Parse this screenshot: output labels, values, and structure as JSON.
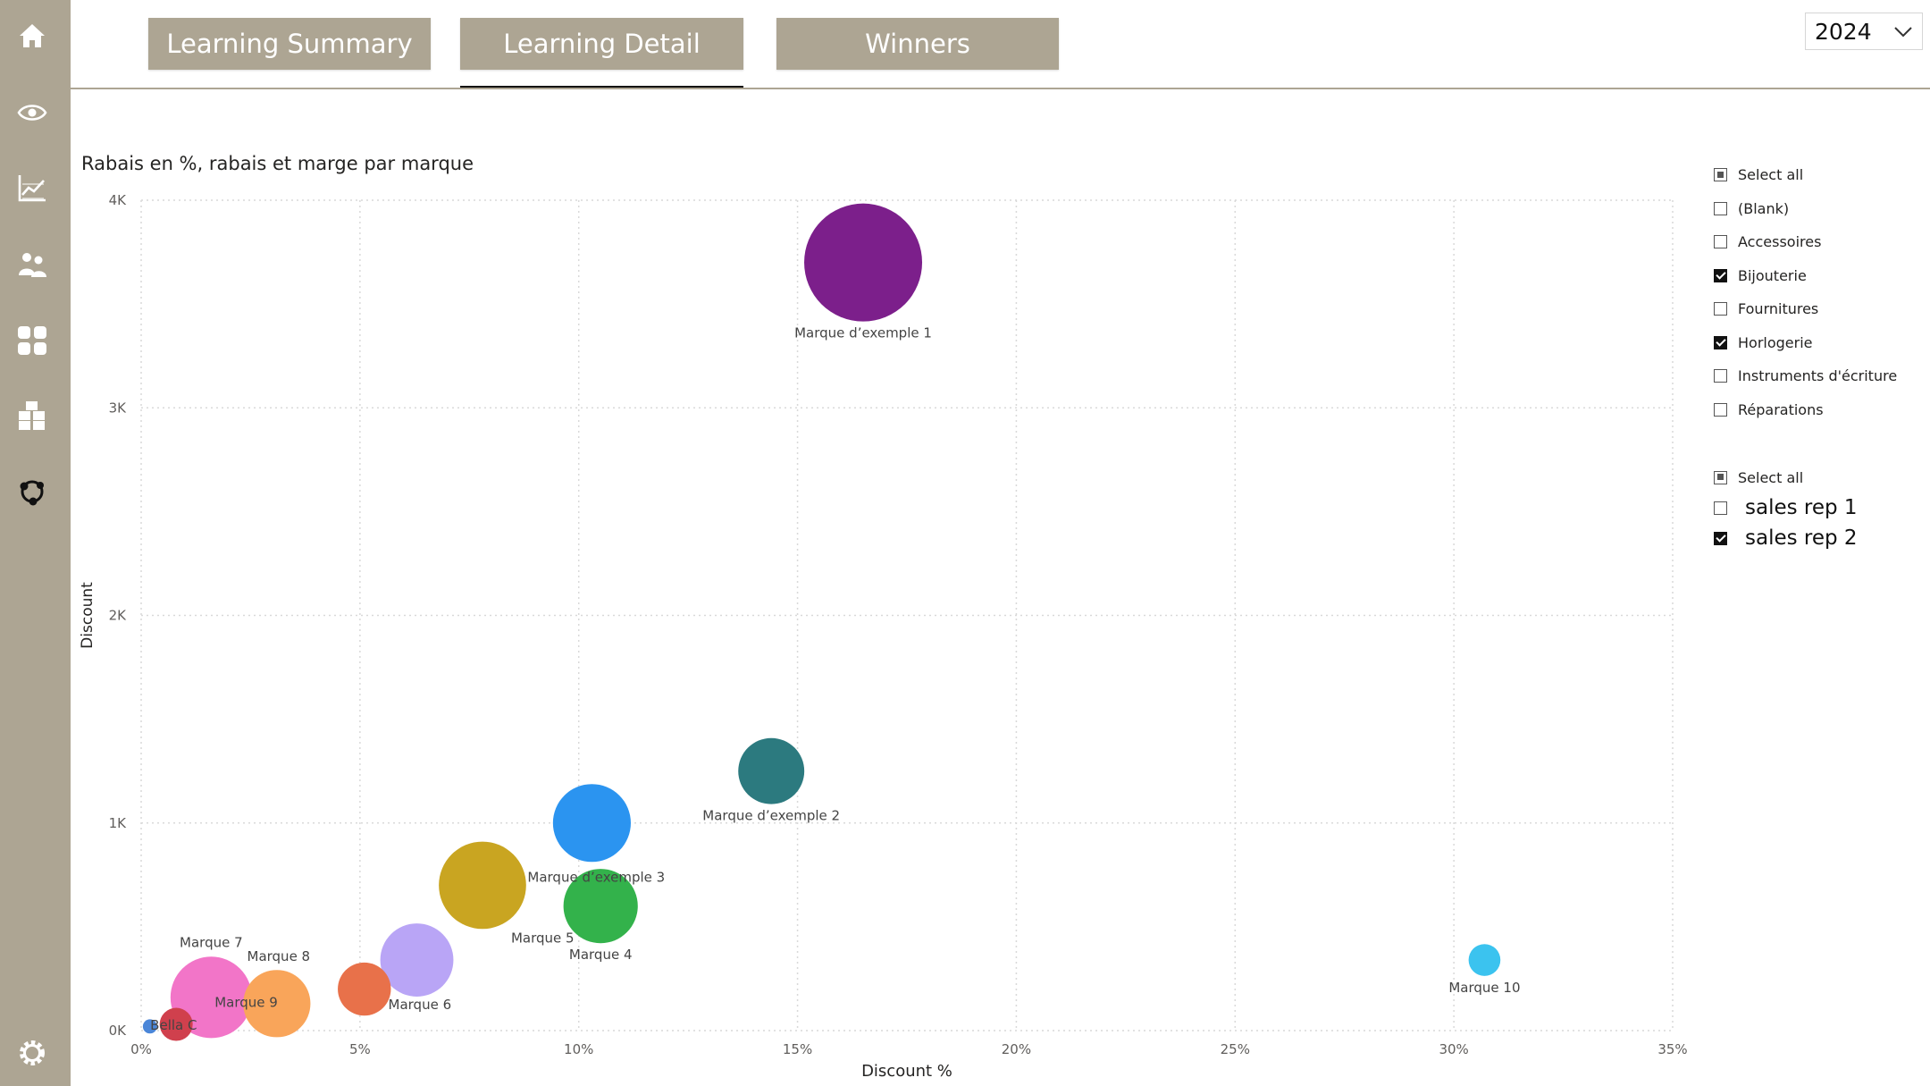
{
  "nav": {
    "items": [
      {
        "icon": "home-icon"
      },
      {
        "icon": "eye-icon"
      },
      {
        "icon": "line-chart-icon"
      },
      {
        "icon": "people-icon"
      },
      {
        "icon": "grid-icon"
      },
      {
        "icon": "boxes-icon"
      },
      {
        "icon": "network-icon"
      },
      {
        "icon": "gear-icon"
      }
    ]
  },
  "tabs": [
    {
      "label": "Learning Summary"
    },
    {
      "label": "Learning Detail",
      "active": true
    },
    {
      "label": "Winners"
    }
  ],
  "year_filter": {
    "value": "2024"
  },
  "slicer_categories": {
    "items": [
      {
        "label": "Select all",
        "state": "partial"
      },
      {
        "label": "(Blank)",
        "state": "unchecked"
      },
      {
        "label": "Accessoires",
        "state": "unchecked"
      },
      {
        "label": "Bijouterie",
        "state": "checked"
      },
      {
        "label": "Fournitures",
        "state": "unchecked"
      },
      {
        "label": "Horlogerie",
        "state": "checked"
      },
      {
        "label": "Instruments d'écriture",
        "state": "unchecked"
      },
      {
        "label": "Réparations",
        "state": "unchecked"
      }
    ]
  },
  "slicer_reps": {
    "items": [
      {
        "label": "Select all",
        "state": "partial"
      },
      {
        "label": "sales rep 1",
        "state": "unchecked"
      },
      {
        "label": "sales rep 2",
        "state": "checked"
      }
    ]
  },
  "colors": {
    "sidebar": "#ada593",
    "tab_bg": "#ada593",
    "grid": "#d9d9d9"
  },
  "chart_data": {
    "type": "scatter",
    "title": "Rabais en %, rabais et marge par marque",
    "xlabel": "Discount %",
    "ylabel": "Discount",
    "xlim": [
      0,
      35
    ],
    "ylim": [
      0,
      4000
    ],
    "x_ticks": [
      "0%",
      "5%",
      "10%",
      "15%",
      "20%",
      "25%",
      "30%",
      "35%"
    ],
    "y_ticks": [
      "0K",
      "1K",
      "2K",
      "3K",
      "4K"
    ],
    "grid": true,
    "points": [
      {
        "label": "Marque d’exemple 1",
        "x": 16.5,
        "y": 3700,
        "size": 1.0,
        "color": "#7c1f8b"
      },
      {
        "label": "Marque d’exemple 2",
        "x": 14.4,
        "y": 1250,
        "size": 0.56,
        "color": "#2c7a7f"
      },
      {
        "label": "Marque d’exemple 3",
        "x": 10.3,
        "y": 1000,
        "size": 0.66,
        "color": "#2b94f0"
      },
      {
        "label": "Marque 4",
        "x": 10.5,
        "y": 600,
        "size": 0.63,
        "color": "#33b24b"
      },
      {
        "label": "Marque 5",
        "x": 7.8,
        "y": 700,
        "size": 0.74,
        "color": "#c9a521"
      },
      {
        "label": "Marque 6",
        "x": 6.3,
        "y": 340,
        "size": 0.62,
        "color": "#b9a5f6"
      },
      {
        "label": "",
        "x": 5.1,
        "y": 200,
        "size": 0.45,
        "color": "#e8714a"
      },
      {
        "label": "Marque 7",
        "x": 1.6,
        "y": 160,
        "size": 0.69,
        "color": "#f275c8"
      },
      {
        "label": "Marque 8",
        "x": 3.1,
        "y": 130,
        "size": 0.57,
        "color": "#f9a55a"
      },
      {
        "label": "Marque 9",
        "x": 2.4,
        "y": 140,
        "size": 0.0,
        "color": "#f275c8"
      },
      {
        "label": "Marque 10",
        "x": 30.7,
        "y": 340,
        "size": 0.27,
        "color": "#3bc3ef"
      },
      {
        "label": "Bella C",
        "x": 0.8,
        "y": 30,
        "size": 0.28,
        "color": "#d0404d"
      },
      {
        "label": "",
        "x": 0.2,
        "y": 20,
        "size": 0.12,
        "color": "#4a86d8"
      }
    ]
  }
}
